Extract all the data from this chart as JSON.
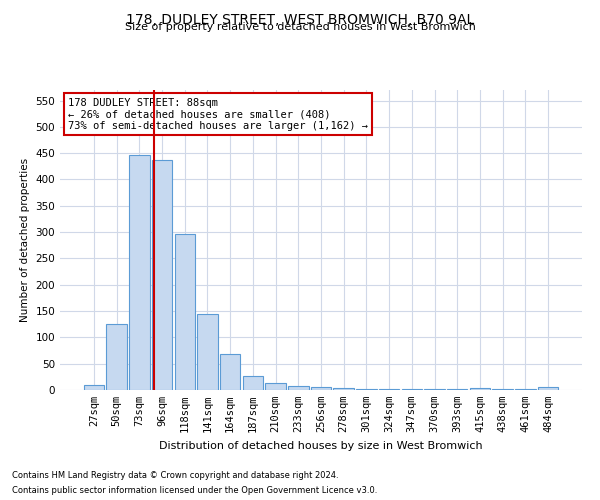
{
  "title": "178, DUDLEY STREET, WEST BROMWICH, B70 9AL",
  "subtitle": "Size of property relative to detached houses in West Bromwich",
  "xlabel": "Distribution of detached houses by size in West Bromwich",
  "ylabel": "Number of detached properties",
  "categories": [
    "27sqm",
    "50sqm",
    "73sqm",
    "96sqm",
    "118sqm",
    "141sqm",
    "164sqm",
    "187sqm",
    "210sqm",
    "233sqm",
    "256sqm",
    "278sqm",
    "301sqm",
    "324sqm",
    "347sqm",
    "370sqm",
    "393sqm",
    "415sqm",
    "438sqm",
    "461sqm",
    "484sqm"
  ],
  "values": [
    10,
    125,
    447,
    437,
    297,
    145,
    68,
    27,
    13,
    8,
    6,
    4,
    2,
    1,
    1,
    1,
    1,
    4,
    1,
    1,
    6
  ],
  "bar_color": "#c6d9f0",
  "bar_edge_color": "#5b9bd5",
  "vline_x": 2.65,
  "vline_color": "#cc0000",
  "annotation_text": "178 DUDLEY STREET: 88sqm\n← 26% of detached houses are smaller (408)\n73% of semi-detached houses are larger (1,162) →",
  "annotation_box_color": "#ffffff",
  "annotation_box_edge": "#cc0000",
  "ylim": [
    0,
    570
  ],
  "yticks": [
    0,
    50,
    100,
    150,
    200,
    250,
    300,
    350,
    400,
    450,
    500,
    550
  ],
  "footer_line1": "Contains HM Land Registry data © Crown copyright and database right 2024.",
  "footer_line2": "Contains public sector information licensed under the Open Government Licence v3.0.",
  "bg_color": "#ffffff",
  "grid_color": "#d0d8e8"
}
